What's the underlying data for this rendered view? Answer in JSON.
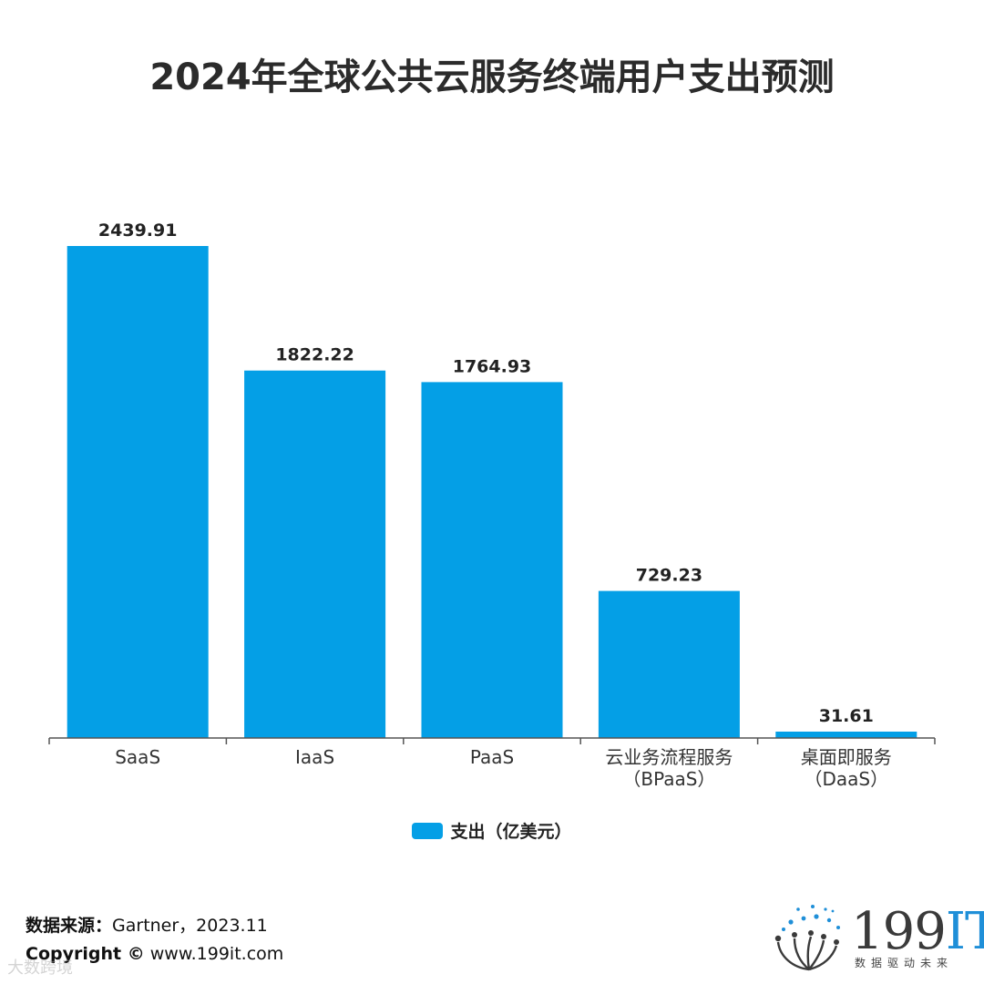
{
  "colors": {
    "bar": "#049fe6",
    "axis": "#555555",
    "brand_blue": "#1f8fd8"
  },
  "chart_data": {
    "type": "bar",
    "title": "2024年全球公共云服务终端用户支出预测",
    "categories": [
      [
        "SaaS"
      ],
      [
        "IaaS"
      ],
      [
        "PaaS"
      ],
      [
        "云业务流程服务",
        "（BPaaS）"
      ],
      [
        "桌面即服务",
        "（DaaS）"
      ]
    ],
    "series": [
      {
        "name": "支出（亿美元）",
        "values": [
          2439.91,
          1822.22,
          1764.93,
          729.23,
          31.61
        ]
      }
    ],
    "data_labels": [
      "2439.91",
      "1822.22",
      "1764.93",
      "729.23",
      "31.61"
    ],
    "ylim": [
      0,
      2439.91
    ],
    "grid": false,
    "legend_position": "bottom"
  },
  "footer": {
    "source_label": "数据来源：",
    "source_value": "Gartner，2023.11",
    "copyright_label": "Copyright ©",
    "copyright_value": "www.199it.com",
    "watermark": "大数跨境"
  },
  "logo": {
    "icon": "dot-globe-logo-icon",
    "number": "199",
    "letters": "IT",
    "tagline": "数据驱动未来"
  }
}
